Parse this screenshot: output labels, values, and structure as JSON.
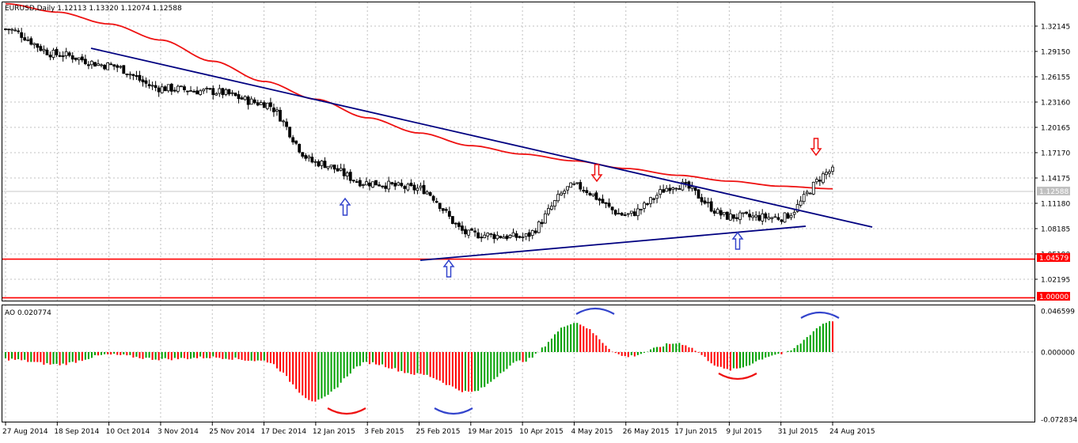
{
  "main_panel": {
    "header": "EURUSD,Daily  1.12113 1.13320 1.12074 1.12588",
    "y_ticks": [
      "1.32145",
      "1.29150",
      "1.26155",
      "1.23160",
      "1.20165",
      "1.17170",
      "1.14175",
      "1.11180",
      "1.08185",
      "1.05190",
      "1.02195"
    ],
    "price_tag": "1.12588",
    "level_1_label": "1.04579",
    "level_2_label": "1.00000"
  },
  "ao_panel": {
    "header": "AO 0.020774",
    "y_ticks": [
      "0.046599",
      "0.000000",
      "-0.072834"
    ]
  },
  "x_ticks": [
    "27 Aug 2014",
    "18 Sep 2014",
    "10 Oct 2014",
    "3 Nov 2014",
    "25 Nov 2014",
    "17 Dec 2014",
    "12 Jan 2015",
    "3 Feb 2015",
    "25 Feb 2015",
    "19 Mar 2015",
    "10 Apr 2015",
    "4 May 2015",
    "26 May 2015",
    "17 Jun 2015",
    "9 Jul 2015",
    "31 Jul 2015",
    "24 Aug 2015"
  ],
  "colors": {
    "bull": "#00a000",
    "bear": "#ff0000",
    "ma": "#ee1111",
    "trendline": "#000080",
    "level": "#ff0000",
    "arrow_up": "#3344cc",
    "arrow_down": "#ee1111",
    "grid": "#c0c0c0"
  },
  "chart_data": [
    {
      "type": "candlestick",
      "symbol": "EURUSD",
      "timeframe": "Daily",
      "last_bar": {
        "open": 1.12113,
        "high": 1.1332,
        "low": 1.12074,
        "close": 1.12588
      },
      "ylim": [
        1.0,
        1.345
      ],
      "x": [
        "27 Aug 2014",
        "18 Sep 2014",
        "10 Oct 2014",
        "3 Nov 2014",
        "25 Nov 2014",
        "17 Dec 2014",
        "12 Jan 2015",
        "3 Feb 2015",
        "25 Feb 2015",
        "19 Mar 2015",
        "10 Apr 2015",
        "4 May 2015",
        "26 May 2015",
        "17 Jun 2015",
        "9 Jul 2015",
        "31 Jul 2015",
        "24 Aug 2015"
      ],
      "close": [
        1.318,
        1.288,
        1.275,
        1.248,
        1.244,
        1.23,
        1.16,
        1.136,
        1.129,
        1.075,
        1.072,
        1.132,
        1.098,
        1.134,
        1.096,
        1.095,
        1.15
      ],
      "moving_average": [
        1.348,
        1.338,
        1.324,
        1.305,
        1.28,
        1.256,
        1.235,
        1.213,
        1.195,
        1.18,
        1.17,
        1.162,
        1.153,
        1.145,
        1.138,
        1.132,
        1.129
      ],
      "horizontal_levels": [
        1.04579,
        1.0
      ],
      "trendlines": [
        {
          "x": [
            "18 Sep 2014",
            "24 Aug 2015"
          ],
          "y": [
            1.295,
            1.092
          ]
        },
        {
          "x": [
            "25 Feb 2015",
            "9 Jul 2015"
          ],
          "y": [
            1.046,
            1.086
          ]
        }
      ],
      "arrows": [
        {
          "direction": "up",
          "x": "12 Jan 2015",
          "y": 1.105
        },
        {
          "direction": "up",
          "x": "19 Mar 2015",
          "y": 1.038
        },
        {
          "direction": "down",
          "x": "4 May 2015",
          "y": 1.155
        },
        {
          "direction": "up",
          "x": "9 Jul 2015",
          "y": 1.075
        },
        {
          "direction": "down",
          "x": "24 Aug 2015",
          "y": 1.175
        }
      ]
    },
    {
      "type": "bar",
      "name": "AO",
      "last_value": 0.020774,
      "ylim": [
        -0.0728,
        0.0466
      ],
      "x": [
        "27 Aug 2014",
        "18 Sep 2014",
        "10 Oct 2014",
        "3 Nov 2014",
        "25 Nov 2014",
        "17 Dec 2014",
        "12 Jan 2015",
        "3 Feb 2015",
        "25 Feb 2015",
        "19 Mar 2015",
        "10 Apr 2015",
        "4 May 2015",
        "26 May 2015",
        "17 Jun 2015",
        "9 Jul 2015",
        "31 Jul 2015",
        "24 Aug 2015"
      ],
      "values": [
        -0.008,
        -0.014,
        -0.003,
        -0.008,
        -0.006,
        -0.01,
        -0.055,
        -0.012,
        -0.025,
        -0.045,
        -0.01,
        0.033,
        -0.005,
        0.01,
        -0.02,
        -0.002,
        0.035
      ],
      "swing_marks": [
        {
          "x": "24 Jan 2015",
          "y": -0.058,
          "color": "#ee1111",
          "shape": "trough"
        },
        {
          "x": "7 Mar 2015",
          "y": -0.057,
          "color": "#3344cc",
          "shape": "trough"
        },
        {
          "x": "14 May 2015",
          "y": 0.041,
          "color": "#3344cc",
          "shape": "peak"
        },
        {
          "x": "15 Jul 2015",
          "y": -0.026,
          "color": "#ee1111",
          "shape": "trough"
        },
        {
          "x": "26 Aug 2015",
          "y": 0.038,
          "color": "#3344cc",
          "shape": "peak"
        }
      ]
    }
  ]
}
